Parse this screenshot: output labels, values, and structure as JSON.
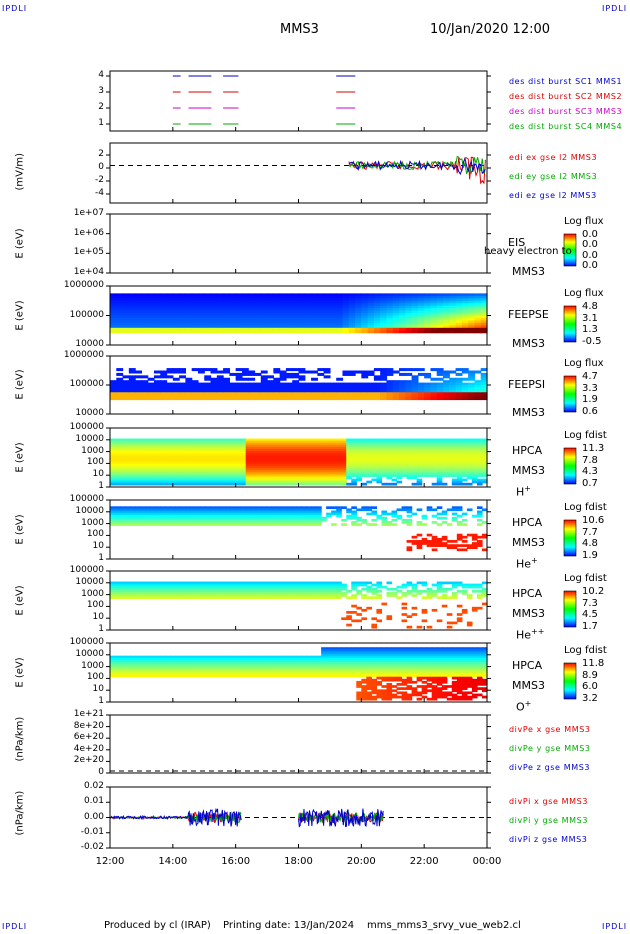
{
  "header": {
    "corner_tl": "IPDLI",
    "corner_tr": "IPDLI",
    "corner_bl": "IPDLI",
    "corner_br": "IPDLI",
    "spacecraft": "MMS3",
    "datetime": "10/Jan/2020 12:00"
  },
  "footer": {
    "produced_by": "Produced by cl (IRAP)",
    "printing_date": "Printing date: 13/Jan/2024",
    "filename": "mms_mms3_srvy_vue_web2.cl"
  },
  "chart_data": {
    "type": "line",
    "x_tick_labels": [
      "12:00",
      "14:00",
      "16:00",
      "18:00",
      "20:00",
      "22:00",
      "00:00"
    ],
    "panels": [
      {
        "id": "burst",
        "y_ticks": [
          "4",
          "3",
          "2",
          "1"
        ],
        "legend": [
          {
            "label": "des dist burst SC1 MMS1",
            "color": "#0000cc"
          },
          {
            "label": "des dist burst SC2 MMS2",
            "color": "#dd0000"
          },
          {
            "label": "des dist burst SC3 MMS3",
            "color": "#cc00cc"
          },
          {
            "label": "des dist burst SC4 MMS4",
            "color": "#00aa00"
          }
        ],
        "intervals_hours": [
          [
            14.0,
            14.2
          ],
          [
            14.5,
            15.2
          ],
          [
            15.6,
            16.0
          ],
          [
            19.2,
            19.7
          ]
        ]
      },
      {
        "id": "edi",
        "ylabel": "(mV/m)",
        "y_ticks": [
          "2",
          "0",
          "-2",
          "-4"
        ],
        "ylim": [
          -5,
          3
        ],
        "legend": [
          {
            "label": "edi ex gse l2 MMS3",
            "color": "#dd0000"
          },
          {
            "label": "edi ey gse l2 MMS3",
            "color": "#00aa00"
          },
          {
            "label": "edi ez gse l2 MMS3",
            "color": "#0000cc"
          }
        ]
      },
      {
        "id": "eis",
        "ylabel": "E (eV)",
        "y_ticks": [
          "1e+07",
          "1e+06",
          "1e+05",
          "1e+04"
        ],
        "inst": [
          "EIS",
          "MMS3"
        ],
        "overlay_text": "heavy electron to",
        "cb_title": "Log flux",
        "cb_values": [
          "0.0",
          "0.0",
          "0.0",
          "0.0"
        ]
      },
      {
        "id": "feepse",
        "ylabel": "E (eV)",
        "y_ticks": [
          "1000000",
          "100000",
          "10000"
        ],
        "inst": [
          "FEEPSE",
          "MMS3"
        ],
        "cb_title": "Log flux",
        "cb_values": [
          "4.8",
          "3.1",
          "1.3",
          "-0.5"
        ]
      },
      {
        "id": "feepsi",
        "ylabel": "E (eV)",
        "y_ticks": [
          "1000000",
          "100000",
          "10000"
        ],
        "inst": [
          "FEEPSI",
          "MMS3"
        ],
        "cb_title": "Log flux",
        "cb_values": [
          "4.7",
          "3.3",
          "1.9",
          "0.6"
        ]
      },
      {
        "id": "hpca-h",
        "ylabel": "E (eV)",
        "y_ticks": [
          "100000",
          "10000",
          "1000",
          "100",
          "10",
          "1"
        ],
        "inst": [
          "HPCA",
          "MMS3"
        ],
        "species": "H",
        "charge": "+",
        "cb_title": "Log fdist",
        "cb_values": [
          "11.3",
          "7.8",
          "4.3",
          "0.7"
        ]
      },
      {
        "id": "hpca-he",
        "ylabel": "E (eV)",
        "y_ticks": [
          "100000",
          "10000",
          "1000",
          "100",
          "10",
          "1"
        ],
        "inst": [
          "HPCA",
          "MMS3"
        ],
        "species": "He",
        "charge": "+",
        "cb_title": "Log fdist",
        "cb_values": [
          "10.6",
          "7.7",
          "4.8",
          "1.9"
        ]
      },
      {
        "id": "hpca-he2",
        "ylabel": "E (eV)",
        "y_ticks": [
          "100000",
          "10000",
          "1000",
          "100",
          "10",
          "1"
        ],
        "inst": [
          "HPCA",
          "MMS3"
        ],
        "species": "He",
        "charge": "++",
        "cb_title": "Log fdist",
        "cb_values": [
          "10.2",
          "7.3",
          "4.5",
          "1.7"
        ]
      },
      {
        "id": "hpca-o",
        "ylabel": "E (eV)",
        "y_ticks": [
          "100000",
          "10000",
          "1000",
          "100",
          "10",
          "1"
        ],
        "inst": [
          "HPCA",
          "MMS3"
        ],
        "species": "O",
        "charge": "+",
        "cb_title": "Log fdist",
        "cb_values": [
          "11.8",
          "8.9",
          "6.0",
          "3.2"
        ]
      },
      {
        "id": "divpe",
        "ylabel": "(nPa/km)",
        "y_ticks": [
          "1e+21",
          "8e+20",
          "6e+20",
          "4e+20",
          "2e+20",
          "0"
        ],
        "ylim": [
          0,
          1.1e+21
        ],
        "legend": [
          {
            "label": "divPe x gse MMS3",
            "color": "#dd0000"
          },
          {
            "label": "divPe y gse MMS3",
            "color": "#00aa00"
          },
          {
            "label": "divPe z gse MMS3",
            "color": "#0000cc"
          }
        ]
      },
      {
        "id": "divpi",
        "ylabel": "(nPa/km)",
        "y_ticks": [
          "0.02",
          "0.01",
          "0.00",
          "-0.01",
          "-0.02"
        ],
        "ylim": [
          -0.02,
          0.02
        ],
        "legend": [
          {
            "label": "divPi x gse MMS3",
            "color": "#dd0000"
          },
          {
            "label": "divPi y gse MMS3",
            "color": "#00aa00"
          },
          {
            "label": "divPi z gse MMS3",
            "color": "#0000cc"
          }
        ]
      }
    ]
  }
}
